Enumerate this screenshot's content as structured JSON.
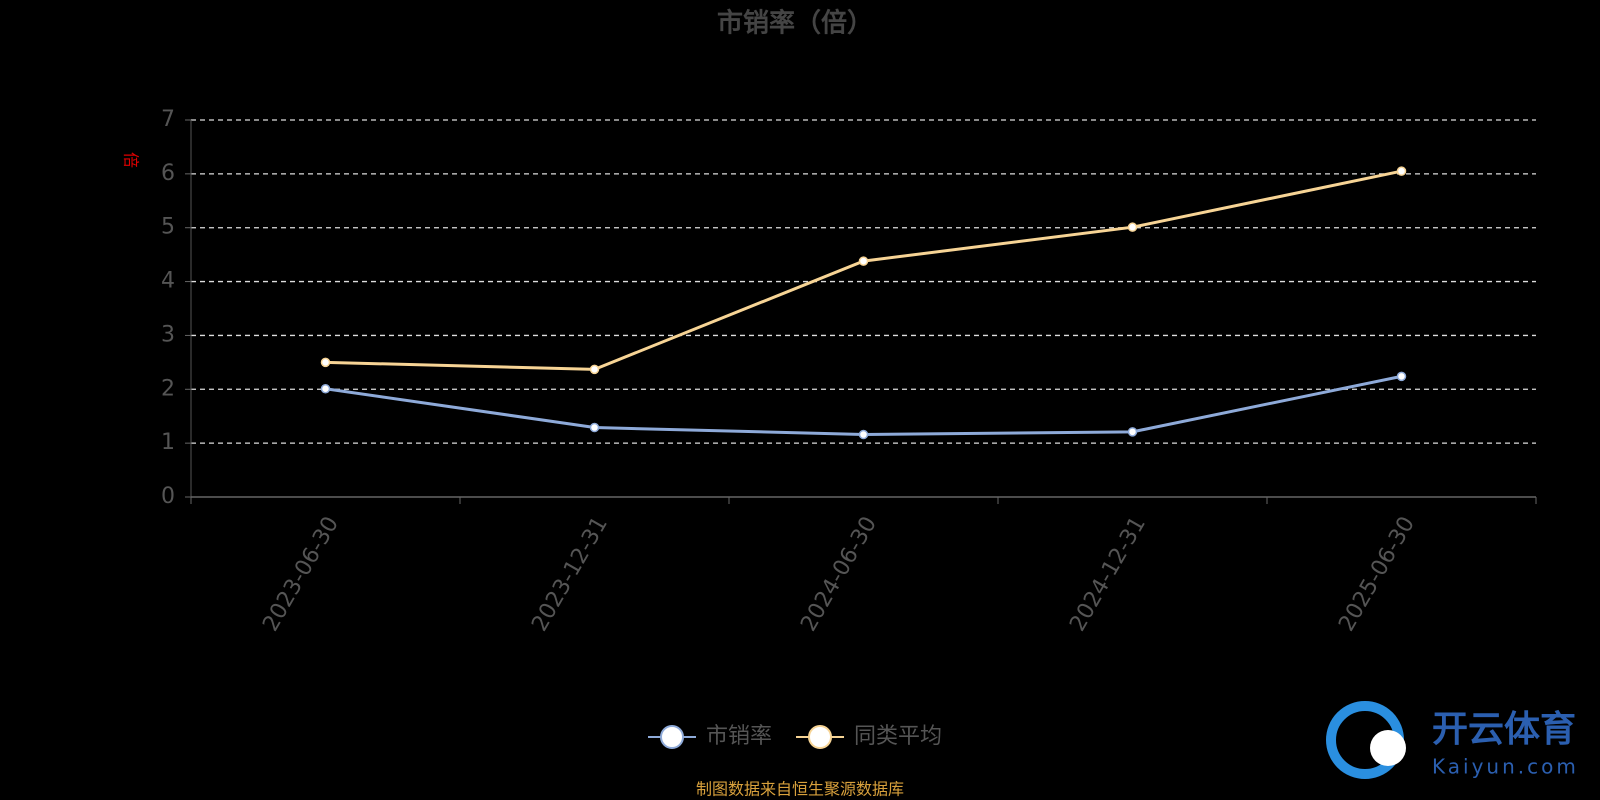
{
  "chart_data": {
    "type": "line",
    "title": "市销率（倍）",
    "y_label": "倍",
    "categories": [
      "2023-06-30",
      "2023-12-31",
      "2024-06-30",
      "2024-12-31",
      "2025-06-30"
    ],
    "series": [
      {
        "name": "市销率",
        "color": "#8eaad9",
        "values": [
          2.01,
          1.29,
          1.16,
          1.21,
          2.24
        ]
      },
      {
        "name": "同类平均",
        "color": "#f7d495",
        "values": [
          2.5,
          2.37,
          4.38,
          5.01,
          6.05
        ]
      }
    ],
    "ylim": [
      0,
      7
    ],
    "yticks": [
      0,
      1,
      2,
      3,
      4,
      5,
      6,
      7
    ],
    "grid": true,
    "source": "制图数据来自恒生聚源数据库",
    "watermark": {
      "name": "开云体育",
      "url": "Kaiyun.com"
    }
  }
}
